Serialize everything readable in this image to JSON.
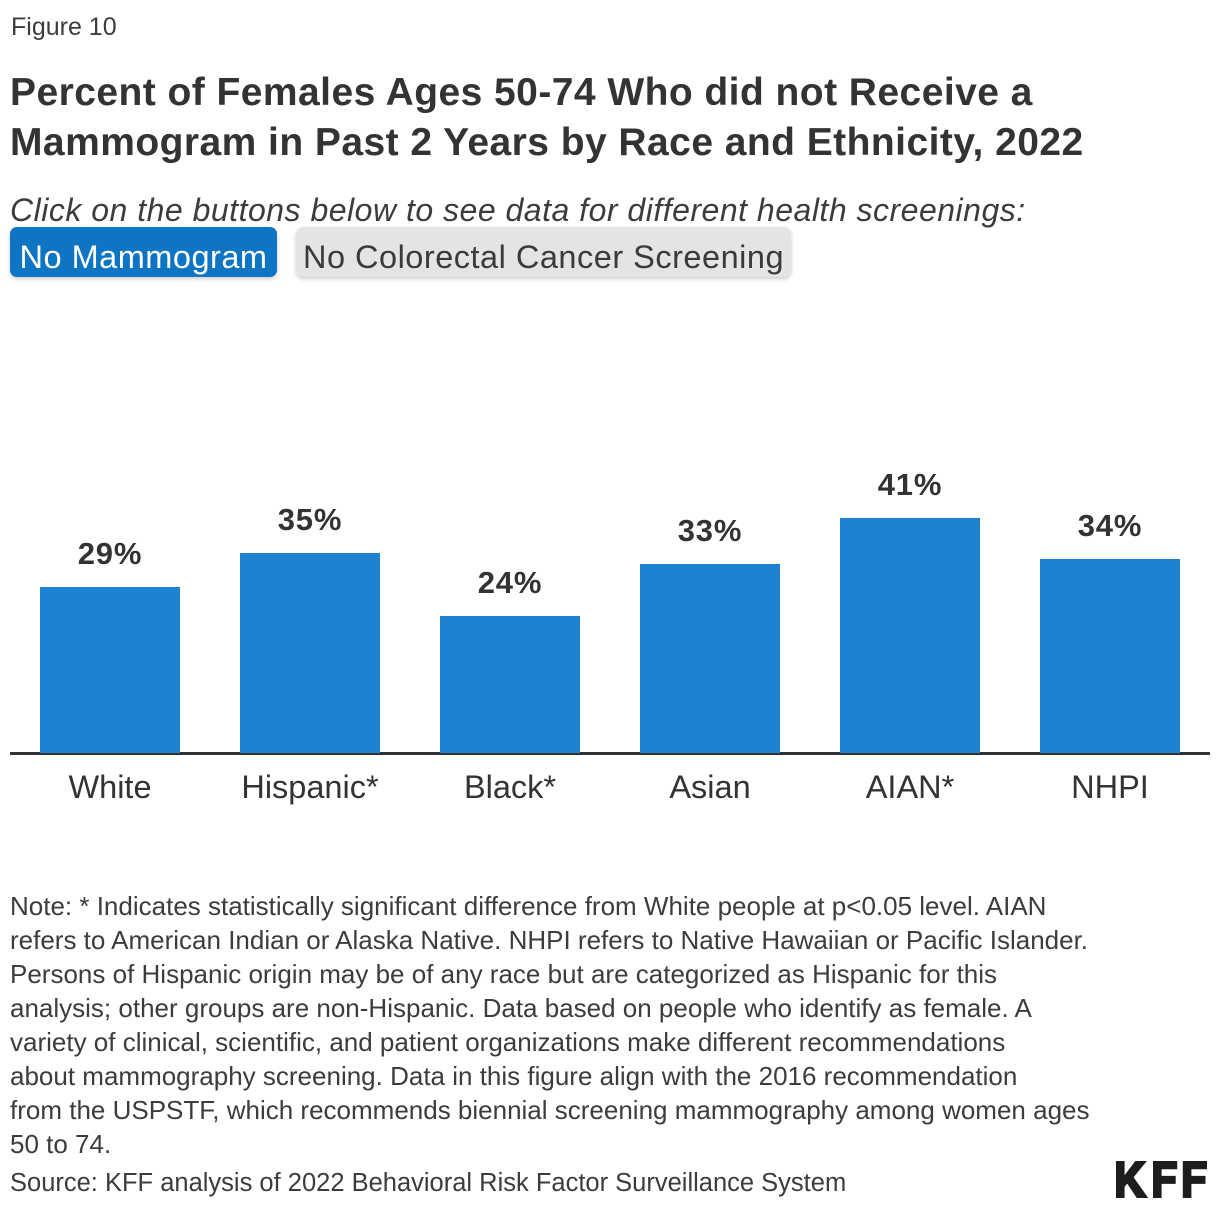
{
  "figure_label": "Figure 10",
  "title_lines": [
    "Percent of Females Ages 50-74 Who did not Receive a",
    "Mammogram in Past 2 Years by Race and Ethnicity, 2022"
  ],
  "subtitle": "Click on the buttons below to see data for different health screenings:",
  "buttons": [
    {
      "label": "No Mammogram",
      "active": true
    },
    {
      "label": "No Colorectal Cancer Screening",
      "active": false
    }
  ],
  "chart_data": {
    "type": "bar",
    "categories": [
      "White",
      "Hispanic*",
      "Black*",
      "Asian",
      "AIAN*",
      "NHPI"
    ],
    "values": [
      29,
      35,
      24,
      33,
      41,
      34
    ],
    "data_label_format": "{value}%",
    "title": "",
    "xlabel": "",
    "ylabel": "",
    "ylim": [
      0,
      45
    ],
    "grid": false,
    "legend": false
  },
  "note_lines": [
    "Note: * Indicates statistically significant difference from White people at p<0.05 level. AIAN",
    "refers to American Indian or Alaska Native. NHPI refers to Native Hawaiian or Pacific Islander.",
    "Persons of Hispanic origin may be of any race but are categorized as Hispanic for this",
    "analysis; other groups are non-Hispanic. Data based on people who identify as female. A",
    "variety of clinical, scientific, and patient organizations make different recommendations",
    "about mammography screening. Data in this figure align with the 2016 recommendation",
    "from the USPSTF, which recommends biennial screening mammography among women ages",
    "50 to 74."
  ],
  "source": "Source: KFF analysis of 2022 Behavioral Risk Factor Surveillance System",
  "logo_text": "KFF",
  "colors": {
    "bar": "#1e82d2",
    "active_button_bg": "#0e74c4",
    "active_button_text": "#ffffff",
    "inactive_button_bg": "#e4e4e4",
    "inactive_button_text": "#3a3a3a",
    "axis_line": "#333333",
    "text_dark": "#333333",
    "text_body": "#3c3c3c"
  }
}
